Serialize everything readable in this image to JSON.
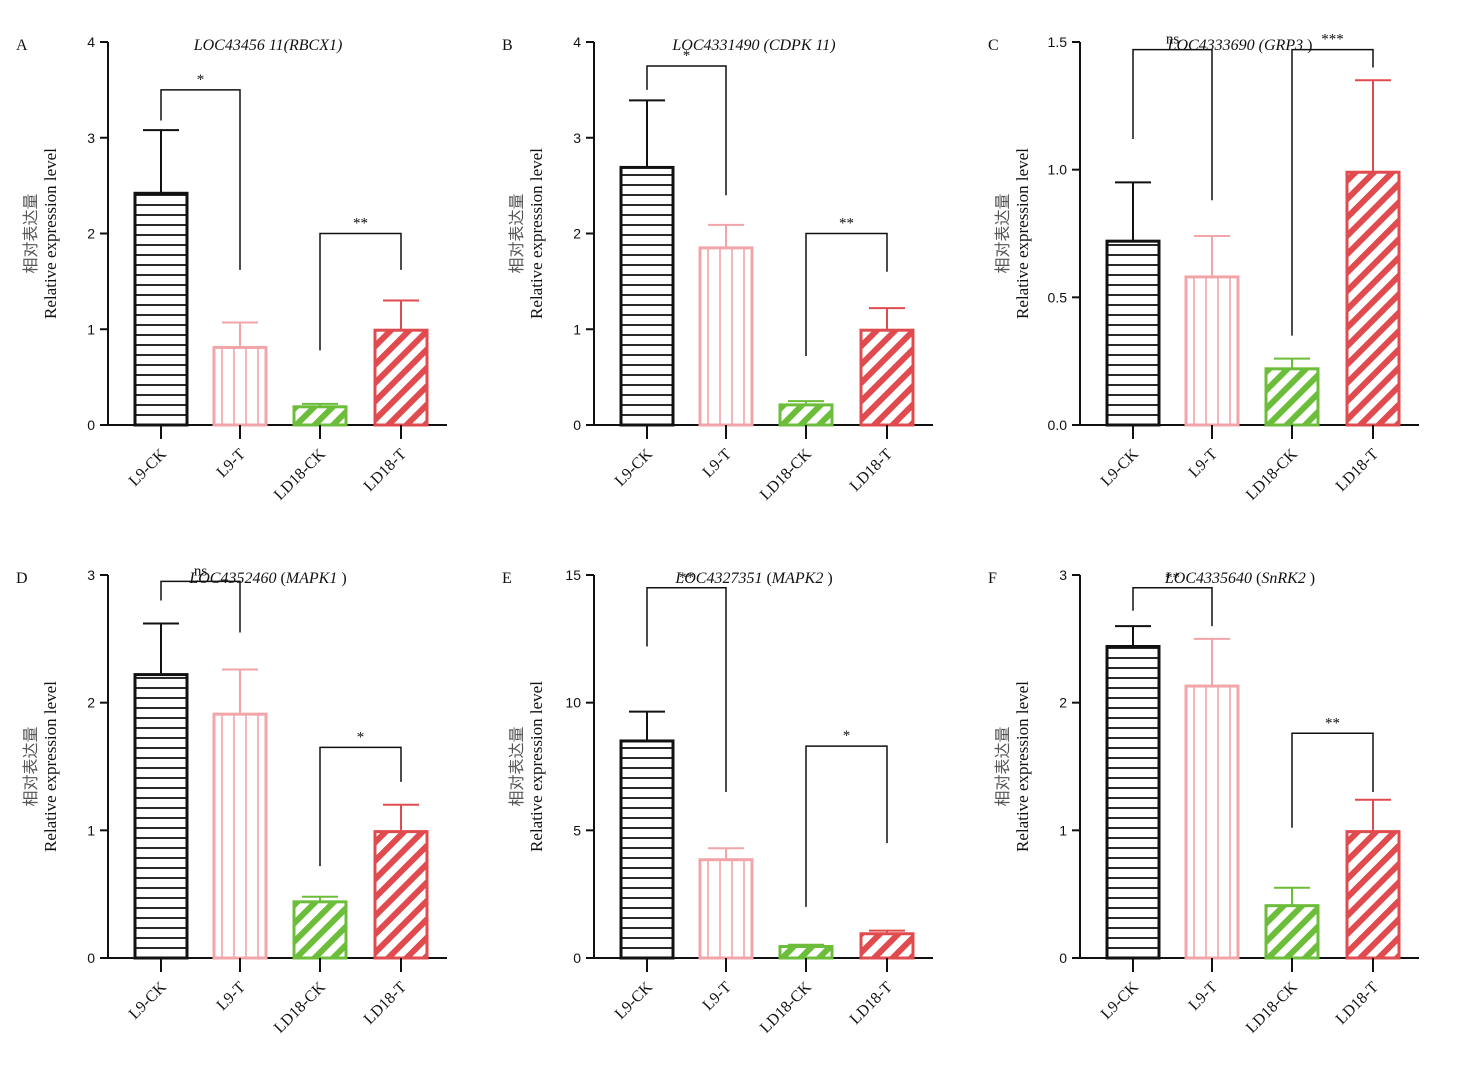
{
  "colors": {
    "L9-CK": "#111111",
    "L9-T": "#f2a5a8",
    "LD18-CK": "#6cbd3a",
    "LD18-T": "#e04b4f"
  },
  "patterns": {
    "L9-CK": "horizontal-lines",
    "L9-T": "vertical-lines",
    "LD18-CK": "diagonal-stripes",
    "LD18-T": "diagonal-stripes"
  },
  "chart_data": [
    {
      "panel": "A",
      "type": "bar",
      "title": "LOC43456 11(RBCX1)",
      "title_parts": [
        {
          "t": "LOC43456 11(RBCX1)",
          "i": true
        }
      ],
      "ylabel_cn": "相对表达量",
      "ylabel": "Relative expression level",
      "ylim": [
        0,
        4
      ],
      "yticks": [
        "0",
        "1",
        "2",
        "3",
        "4"
      ],
      "categories": [
        "L9-CK",
        "L9-T",
        "LD18-CK",
        "LD18-T"
      ],
      "values": [
        2.42,
        0.81,
        0.19,
        0.99
      ],
      "errors": [
        0.66,
        0.26,
        0.03,
        0.31
      ],
      "significance": [
        {
          "pair": [
            0,
            1
          ],
          "label": "*",
          "y": 3.5,
          "left_end": 3.18,
          "right_end": 1.62
        },
        {
          "pair": [
            2,
            3
          ],
          "label": "**",
          "y": 2.0,
          "left_end": 0.78,
          "right_end": 1.62
        }
      ]
    },
    {
      "panel": "B",
      "type": "bar",
      "title": "LOC4331490 (CDPK 11)",
      "title_parts": [
        {
          "t": "LOC4331490 (CDPK 11)",
          "i": true
        }
      ],
      "ylabel_cn": "相对表达量",
      "ylabel": "Relative expression level",
      "ylim": [
        0,
        4
      ],
      "yticks": [
        "0",
        "1",
        "2",
        "3",
        "4"
      ],
      "categories": [
        "L9-CK",
        "L9-T",
        "LD18-CK",
        "LD18-T"
      ],
      "values": [
        2.69,
        1.85,
        0.21,
        0.99
      ],
      "errors": [
        0.7,
        0.24,
        0.04,
        0.23
      ],
      "significance": [
        {
          "pair": [
            0,
            1
          ],
          "label": "*",
          "y": 3.75,
          "left_end": 3.5,
          "right_end": 2.4
        },
        {
          "pair": [
            2,
            3
          ],
          "label": "**",
          "y": 2.0,
          "left_end": 0.72,
          "right_end": 1.6
        }
      ]
    },
    {
      "panel": "C",
      "type": "bar",
      "title": "LOC4333690 (GRP3 )",
      "title_parts": [
        {
          "t": "LOC4333690 (",
          "i": true
        },
        {
          "t": "GRP3",
          "i": true
        },
        {
          "t": " )",
          "i": false
        }
      ],
      "ylabel_cn": "相对表达量",
      "ylabel": "Relative expression level",
      "ylim": [
        0,
        1.5
      ],
      "yticks": [
        "0.0",
        "0.5",
        "1.0",
        "1.5"
      ],
      "categories": [
        "L9-CK",
        "L9-T",
        "LD18-CK",
        "LD18-T"
      ],
      "values": [
        0.72,
        0.58,
        0.22,
        0.99
      ],
      "errors": [
        0.23,
        0.16,
        0.04,
        0.36
      ],
      "significance": [
        {
          "pair": [
            0,
            1
          ],
          "label": "ns",
          "y": 1.47,
          "left_end": 1.12,
          "right_end": 0.88
        },
        {
          "pair": [
            2,
            3
          ],
          "label": "***",
          "y": 1.47,
          "left_end": 0.35,
          "right_end": 1.4
        }
      ]
    },
    {
      "panel": "D",
      "type": "bar",
      "title": "LOC4352460 (MAPK1 )",
      "title_parts": [
        {
          "t": "LOC4352460",
          "i": true
        },
        {
          "t": " (",
          "i": false
        },
        {
          "t": "MAPK1",
          "i": true
        },
        {
          "t": " )",
          "i": false
        }
      ],
      "ylabel_cn": "相对表达量",
      "ylabel": "Relative expression level",
      "ylim": [
        0,
        3
      ],
      "yticks": [
        "0",
        "1",
        "2",
        "3"
      ],
      "categories": [
        "L9-CK",
        "L9-T",
        "LD18-CK",
        "LD18-T"
      ],
      "values": [
        2.22,
        1.91,
        0.44,
        0.99
      ],
      "errors": [
        0.4,
        0.35,
        0.04,
        0.21
      ],
      "significance": [
        {
          "pair": [
            0,
            1
          ],
          "label": "ns",
          "y": 2.95,
          "left_end": 2.8,
          "right_end": 2.55
        },
        {
          "pair": [
            2,
            3
          ],
          "label": "*",
          "y": 1.65,
          "left_end": 0.72,
          "right_end": 1.38
        }
      ]
    },
    {
      "panel": "E",
      "type": "bar",
      "title": "LOC4327351 (MAPK2 )",
      "title_parts": [
        {
          "t": "LOC4327351",
          "i": true
        },
        {
          "t": " (",
          "i": false
        },
        {
          "t": "MAPK2",
          "i": true
        },
        {
          "t": " )",
          "i": false
        }
      ],
      "ylabel_cn": "相对表达量",
      "ylabel": "Relative expression level",
      "ylim": [
        0,
        15
      ],
      "yticks": [
        "0",
        "5",
        "10",
        "15"
      ],
      "categories": [
        "L9-CK",
        "L9-T",
        "LD18-CK",
        "LD18-T"
      ],
      "values": [
        8.5,
        3.85,
        0.45,
        0.95
      ],
      "errors": [
        1.15,
        0.45,
        0.07,
        0.12
      ],
      "significance": [
        {
          "pair": [
            0,
            1
          ],
          "label": "**",
          "y": 14.5,
          "left_end": 12.2,
          "right_end": 6.5
        },
        {
          "pair": [
            2,
            3
          ],
          "label": "*",
          "y": 8.3,
          "left_end": 2.0,
          "right_end": 4.5
        }
      ]
    },
    {
      "panel": "F",
      "type": "bar",
      "title": "LOC4335640 (SnRK2 )",
      "title_parts": [
        {
          "t": "LOC4335640",
          "i": true
        },
        {
          "t": " (",
          "i": false
        },
        {
          "t": "SnRK2",
          "i": true
        },
        {
          "t": " )",
          "i": false
        }
      ],
      "ylabel_cn": "相对表达量",
      "ylabel": "Relative expression level",
      "ylim": [
        0,
        3
      ],
      "yticks": [
        "0",
        "1",
        "2",
        "3"
      ],
      "categories": [
        "L9-CK",
        "L9-T",
        "LD18-CK",
        "LD18-T"
      ],
      "values": [
        2.44,
        2.13,
        0.41,
        0.99
      ],
      "errors": [
        0.16,
        0.37,
        0.14,
        0.25
      ],
      "significance": [
        {
          "pair": [
            0,
            1
          ],
          "label": "**",
          "y": 2.9,
          "left_end": 2.72,
          "right_end": 2.6
        },
        {
          "pair": [
            2,
            3
          ],
          "label": "**",
          "y": 1.76,
          "left_end": 1.02,
          "right_end": 1.3
        }
      ]
    }
  ]
}
